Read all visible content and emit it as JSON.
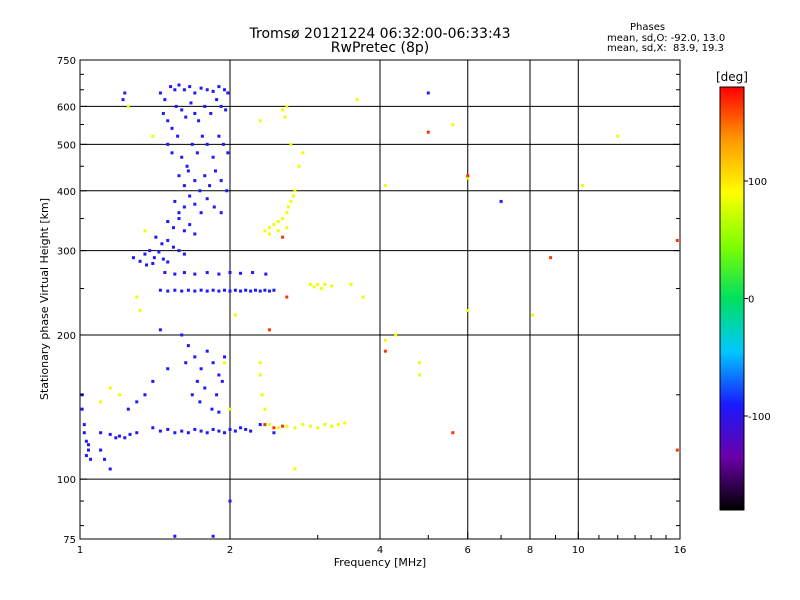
{
  "title": {
    "line1": "Tromsø 20121224 06:32:00-06:33:43",
    "line2": "RwPretec (8p)"
  },
  "stats": {
    "heading": "Phases",
    "line_o": "mean, sd,O: -92.0, 13.0",
    "line_x": "mean, sd,X:  83.9, 19.3"
  },
  "chart_data": {
    "type": "scatter",
    "title": "Tromsø 20121224 06:32:00-06:33:43",
    "subtitle": "RwPretec (8p)",
    "xlabel": "Frequency [MHz]",
    "ylabel": "Stationary phase Virtual Height [km]",
    "x_scale": "log",
    "y_scale": "log",
    "xlim": [
      1,
      16
    ],
    "ylim": [
      75,
      750
    ],
    "x_ticks": [
      1,
      2,
      4,
      6,
      8,
      10,
      16
    ],
    "y_ticks": [
      75,
      100,
      200,
      300,
      400,
      500,
      600,
      750
    ],
    "x_grid": [
      2,
      4,
      6,
      8,
      10
    ],
    "y_grid": [
      100,
      200,
      300,
      400,
      500,
      600
    ],
    "colorbar": {
      "label": "[deg]",
      "range": [
        -180,
        180
      ],
      "ticks": [
        100,
        0,
        -100
      ],
      "colors": [
        "#000000",
        "#6a00a8",
        "#1a1aff",
        "#00c8ff",
        "#00e060",
        "#7fff00",
        "#ffff00",
        "#ff9900",
        "#ff0000"
      ]
    },
    "series": [
      {
        "phase": -92,
        "points": [
          [
            1.45,
            640
          ],
          [
            1.48,
            620
          ],
          [
            1.52,
            660
          ],
          [
            1.55,
            650
          ],
          [
            1.58,
            665
          ],
          [
            1.62,
            650
          ],
          [
            1.66,
            660
          ],
          [
            1.7,
            640
          ],
          [
            1.75,
            655
          ],
          [
            1.8,
            650
          ],
          [
            1.85,
            645
          ],
          [
            1.9,
            660
          ],
          [
            1.95,
            650
          ],
          [
            1.98,
            640
          ],
          [
            1.47,
            580
          ],
          [
            1.5,
            560
          ],
          [
            1.53,
            540
          ],
          [
            1.56,
            600
          ],
          [
            1.6,
            590
          ],
          [
            1.63,
            570
          ],
          [
            1.67,
            610
          ],
          [
            1.7,
            580
          ],
          [
            1.73,
            560
          ],
          [
            1.78,
            600
          ],
          [
            1.83,
            580
          ],
          [
            1.88,
            620
          ],
          [
            1.92,
            600
          ],
          [
            1.96,
            590
          ],
          [
            1.5,
            500
          ],
          [
            1.53,
            480
          ],
          [
            1.57,
            520
          ],
          [
            1.6,
            470
          ],
          [
            1.64,
            450
          ],
          [
            1.68,
            500
          ],
          [
            1.72,
            480
          ],
          [
            1.76,
            520
          ],
          [
            1.8,
            500
          ],
          [
            1.85,
            470
          ],
          [
            1.9,
            520
          ],
          [
            1.94,
            500
          ],
          [
            1.98,
            480
          ],
          [
            1.58,
            430
          ],
          [
            1.62,
            410
          ],
          [
            1.65,
            440
          ],
          [
            1.7,
            420
          ],
          [
            1.74,
            400
          ],
          [
            1.78,
            430
          ],
          [
            1.82,
            410
          ],
          [
            1.87,
            440
          ],
          [
            1.92,
            420
          ],
          [
            1.97,
            400
          ],
          [
            1.55,
            380
          ],
          [
            1.58,
            360
          ],
          [
            1.62,
            370
          ],
          [
            1.66,
            390
          ],
          [
            1.7,
            375
          ],
          [
            1.75,
            360
          ],
          [
            1.8,
            385
          ],
          [
            1.86,
            370
          ],
          [
            1.92,
            360
          ],
          [
            1.5,
            345
          ],
          [
            1.54,
            335
          ],
          [
            1.58,
            350
          ],
          [
            1.62,
            330
          ],
          [
            1.66,
            340
          ],
          [
            1.7,
            325
          ],
          [
            1.42,
            320
          ],
          [
            1.46,
            310
          ],
          [
            1.5,
            315
          ],
          [
            1.54,
            305
          ],
          [
            1.58,
            300
          ],
          [
            1.62,
            295
          ],
          [
            1.35,
            295
          ],
          [
            1.38,
            300
          ],
          [
            1.41,
            290
          ],
          [
            1.44,
            298
          ],
          [
            1.47,
            288
          ],
          [
            1.5,
            284
          ],
          [
            1.32,
            285
          ],
          [
            1.36,
            280
          ],
          [
            1.4,
            282
          ],
          [
            1.28,
            290
          ],
          [
            1.22,
            620
          ],
          [
            1.23,
            640
          ],
          [
            1.48,
            270
          ],
          [
            1.55,
            268
          ],
          [
            1.62,
            270
          ],
          [
            1.7,
            268
          ],
          [
            1.8,
            270
          ],
          [
            1.9,
            268
          ],
          [
            2.0,
            270
          ],
          [
            2.1,
            269
          ],
          [
            2.22,
            270
          ],
          [
            2.36,
            268
          ],
          [
            1.45,
            248
          ],
          [
            1.5,
            247
          ],
          [
            1.55,
            248
          ],
          [
            1.6,
            247
          ],
          [
            1.65,
            248
          ],
          [
            1.7,
            247
          ],
          [
            1.75,
            248
          ],
          [
            1.8,
            247
          ],
          [
            1.85,
            248
          ],
          [
            1.9,
            247
          ],
          [
            1.95,
            248
          ],
          [
            2.0,
            247
          ],
          [
            2.05,
            248
          ],
          [
            2.1,
            247
          ],
          [
            2.15,
            248
          ],
          [
            2.2,
            247
          ],
          [
            2.25,
            248
          ],
          [
            2.3,
            247
          ],
          [
            2.35,
            248
          ],
          [
            2.4,
            247
          ],
          [
            2.45,
            248
          ],
          [
            1.6,
            200
          ],
          [
            1.65,
            190
          ],
          [
            1.7,
            180
          ],
          [
            1.75,
            170
          ],
          [
            1.8,
            185
          ],
          [
            1.85,
            175
          ],
          [
            1.9,
            165
          ],
          [
            1.95,
            180
          ],
          [
            1.63,
            175
          ],
          [
            1.72,
            160
          ],
          [
            1.78,
            155
          ],
          [
            1.88,
            150
          ],
          [
            1.93,
            160
          ],
          [
            1.68,
            150
          ],
          [
            1.74,
            145
          ],
          [
            1.84,
            140
          ],
          [
            1.9,
            138
          ],
          [
            1.4,
            128
          ],
          [
            1.45,
            126
          ],
          [
            1.5,
            127
          ],
          [
            1.55,
            125
          ],
          [
            1.6,
            126
          ],
          [
            1.65,
            125
          ],
          [
            1.7,
            127
          ],
          [
            1.75,
            126
          ],
          [
            1.8,
            125
          ],
          [
            1.85,
            127
          ],
          [
            1.9,
            126
          ],
          [
            1.95,
            125
          ],
          [
            2.0,
            127
          ],
          [
            2.05,
            126
          ],
          [
            2.1,
            128
          ],
          [
            2.15,
            127
          ],
          [
            2.2,
            126
          ],
          [
            1.15,
            124
          ],
          [
            1.18,
            122
          ],
          [
            1.2,
            123
          ],
          [
            1.23,
            122
          ],
          [
            1.26,
            124
          ],
          [
            1.3,
            125
          ],
          [
            1.02,
            125
          ],
          [
            1.03,
            120
          ],
          [
            1.04,
            115
          ],
          [
            1.05,
            110
          ],
          [
            1.03,
            112
          ],
          [
            1.04,
            118
          ],
          [
            1.02,
            130
          ],
          [
            1.01,
            140
          ],
          [
            1.01,
            150
          ],
          [
            1.1,
            115
          ],
          [
            1.12,
            110
          ],
          [
            1.15,
            105
          ],
          [
            1.1,
            125
          ],
          [
            2.0,
            90
          ],
          [
            1.85,
            76
          ],
          [
            1.55,
            76
          ],
          [
            1.5,
            170
          ],
          [
            1.4,
            160
          ],
          [
            1.35,
            150
          ],
          [
            1.3,
            145
          ],
          [
            1.25,
            140
          ],
          [
            1.45,
            205
          ],
          [
            2.3,
            130
          ],
          [
            2.45,
            125
          ],
          [
            5.0,
            640
          ],
          [
            7.0,
            380
          ]
        ]
      },
      {
        "phase": 84,
        "points": [
          [
            2.35,
            330
          ],
          [
            2.4,
            335
          ],
          [
            2.45,
            340
          ],
          [
            2.5,
            345
          ],
          [
            2.55,
            350
          ],
          [
            2.6,
            360
          ],
          [
            2.62,
            370
          ],
          [
            2.65,
            380
          ],
          [
            2.68,
            390
          ],
          [
            2.7,
            400
          ],
          [
            2.4,
            325
          ],
          [
            2.5,
            330
          ],
          [
            2.6,
            335
          ],
          [
            2.55,
            590
          ],
          [
            2.58,
            570
          ],
          [
            2.6,
            600
          ],
          [
            2.75,
            450
          ],
          [
            2.8,
            480
          ],
          [
            2.9,
            255
          ],
          [
            2.95,
            252
          ],
          [
            3.0,
            255
          ],
          [
            3.05,
            250
          ],
          [
            3.1,
            255
          ],
          [
            3.2,
            253
          ],
          [
            2.4,
            130
          ],
          [
            2.5,
            128
          ],
          [
            2.6,
            129
          ],
          [
            2.7,
            128
          ],
          [
            2.8,
            130
          ],
          [
            2.9,
            129
          ],
          [
            3.0,
            128
          ],
          [
            3.1,
            130
          ],
          [
            3.2,
            129
          ],
          [
            3.3,
            130
          ],
          [
            3.4,
            131
          ],
          [
            2.3,
            165
          ],
          [
            2.32,
            150
          ],
          [
            2.35,
            140
          ],
          [
            2.3,
            175
          ],
          [
            2.0,
            140
          ],
          [
            1.95,
            175
          ],
          [
            2.05,
            220
          ],
          [
            1.4,
            520
          ],
          [
            1.35,
            330
          ],
          [
            1.25,
            600
          ],
          [
            1.3,
            240
          ],
          [
            1.32,
            225
          ],
          [
            1.2,
            150
          ],
          [
            1.15,
            155
          ],
          [
            1.1,
            145
          ],
          [
            2.3,
            560
          ],
          [
            2.65,
            500
          ],
          [
            3.7,
            240
          ],
          [
            4.1,
            410
          ],
          [
            4.1,
            195
          ],
          [
            4.3,
            200
          ],
          [
            4.8,
            175
          ],
          [
            4.8,
            165
          ],
          [
            5.6,
            550
          ],
          [
            6.0,
            225
          ],
          [
            8.1,
            220
          ],
          [
            10.2,
            410
          ],
          [
            12.0,
            520
          ],
          [
            2.7,
            105
          ],
          [
            3.6,
            620
          ],
          [
            6.0,
            425
          ],
          [
            3.5,
            255
          ]
        ]
      },
      {
        "phase": 165,
        "points": [
          [
            2.35,
            130
          ],
          [
            2.45,
            128
          ],
          [
            2.55,
            129
          ],
          [
            2.4,
            205
          ],
          [
            2.55,
            320
          ],
          [
            5.0,
            530
          ],
          [
            6.0,
            430
          ],
          [
            8.8,
            290
          ],
          [
            15.8,
            315
          ],
          [
            4.1,
            185
          ],
          [
            5.6,
            125
          ],
          [
            15.8,
            115
          ],
          [
            2.6,
            240
          ]
        ]
      }
    ]
  }
}
